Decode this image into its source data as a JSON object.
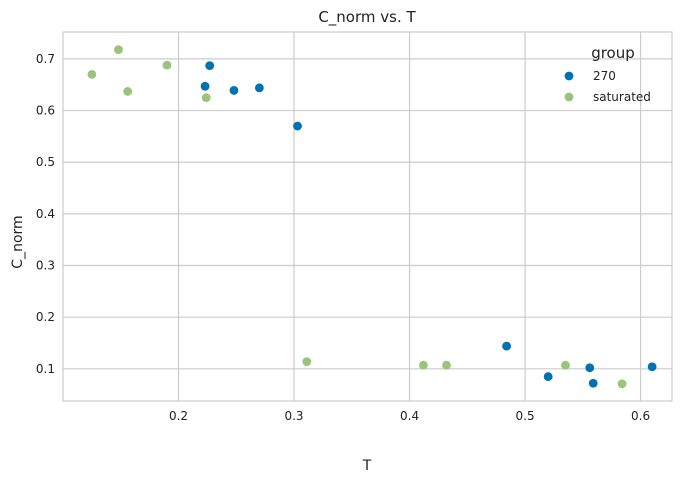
{
  "chart_data": {
    "type": "scatter",
    "title": "C_norm vs. T",
    "xlabel": "T",
    "ylabel": "C_norm",
    "xlim": [
      0.1,
      0.6272
    ],
    "ylim": [
      0.0377,
      0.7521
    ],
    "xticks": [
      0.2,
      0.3,
      0.4,
      0.5,
      0.6
    ],
    "xtick_labels": [
      "0.2",
      "0.3",
      "0.4",
      "0.5",
      "0.6"
    ],
    "yticks": [
      0.1,
      0.2,
      0.3,
      0.4,
      0.5,
      0.6,
      0.7
    ],
    "ytick_labels": [
      "0.1",
      "0.2",
      "0.3",
      "0.4",
      "0.5",
      "0.6",
      "0.7"
    ],
    "grid": true,
    "legend": {
      "title": "group",
      "position": "top-right"
    },
    "series": [
      {
        "name": "270",
        "color": "#0072b2",
        "points": [
          [
            0.227,
            0.687
          ],
          [
            0.223,
            0.647
          ],
          [
            0.248,
            0.639
          ],
          [
            0.27,
            0.644
          ],
          [
            0.303,
            0.57
          ],
          [
            0.484,
            0.144
          ],
          [
            0.52,
            0.085
          ],
          [
            0.556,
            0.102
          ],
          [
            0.559,
            0.072
          ],
          [
            0.61,
            0.104
          ]
        ]
      },
      {
        "name": "saturated",
        "color": "#9bc37b",
        "points": [
          [
            0.125,
            0.67
          ],
          [
            0.148,
            0.718
          ],
          [
            0.156,
            0.637
          ],
          [
            0.19,
            0.688
          ],
          [
            0.224,
            0.625
          ],
          [
            0.311,
            0.114
          ],
          [
            0.412,
            0.107
          ],
          [
            0.432,
            0.107
          ],
          [
            0.535,
            0.107
          ],
          [
            0.584,
            0.071
          ]
        ]
      }
    ]
  }
}
